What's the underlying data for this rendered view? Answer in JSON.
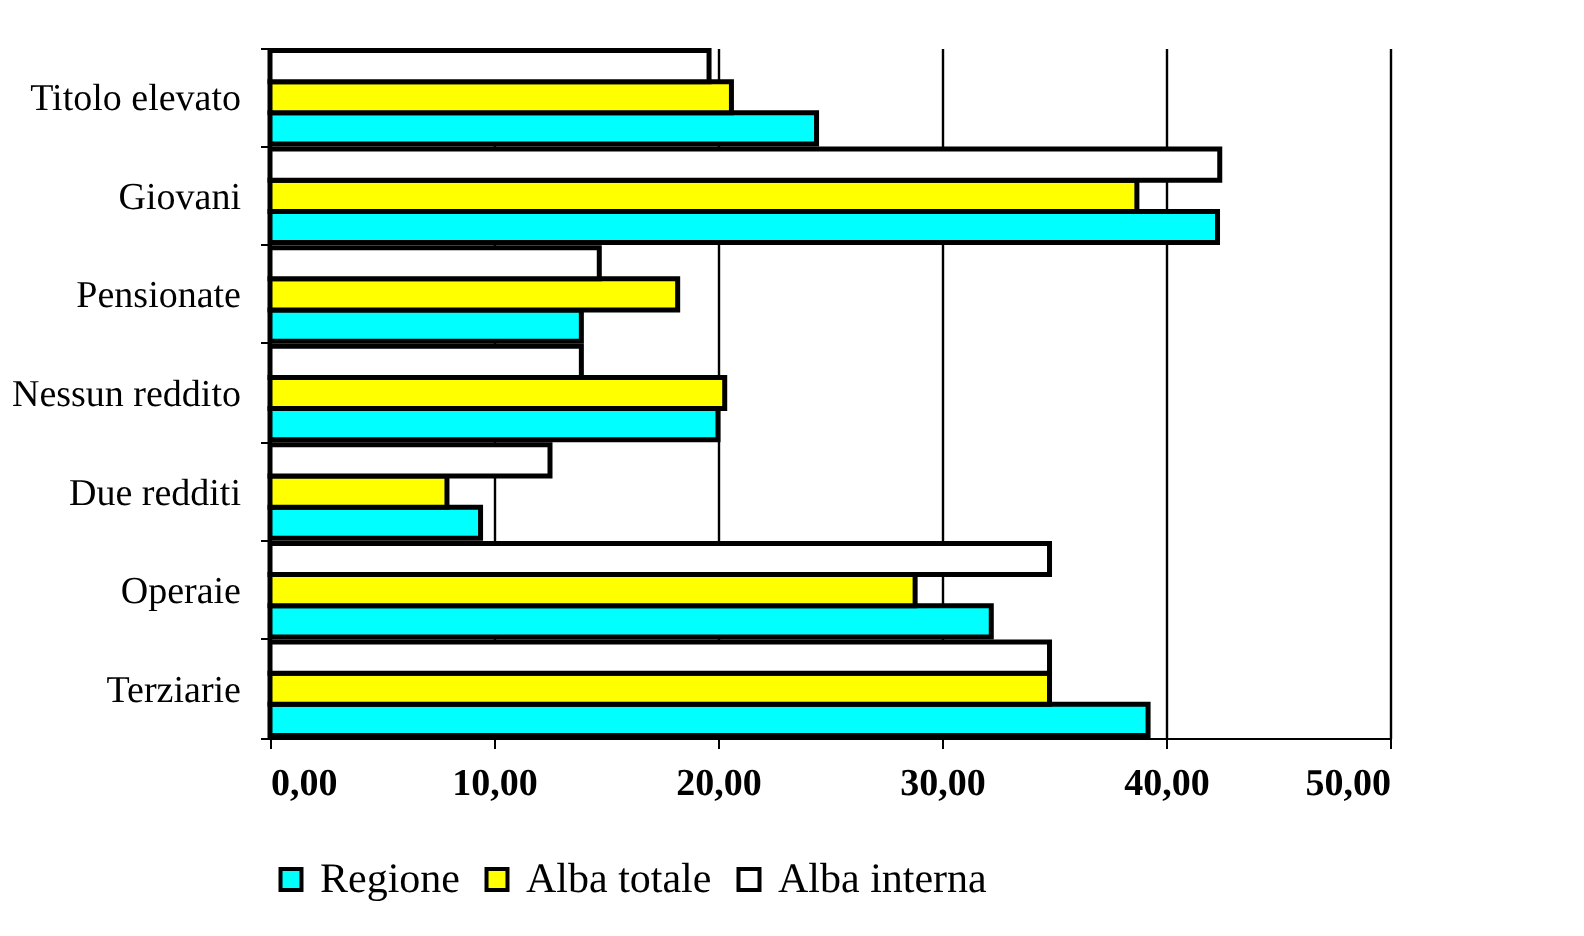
{
  "chart_data": {
    "type": "bar",
    "orientation": "horizontal",
    "categories": [
      "Titolo elevato",
      "Giovani",
      "Pensionate",
      "Nessun reddito",
      "Due redditi",
      "Operaie",
      "Terziarie"
    ],
    "series": [
      {
        "name": "Regione",
        "color": "#00ffff",
        "values": [
          24.4,
          42.3,
          13.9,
          20.0,
          9.4,
          32.2,
          39.2
        ]
      },
      {
        "name": "Alba totale",
        "color": "#ffff00",
        "values": [
          20.6,
          38.7,
          18.2,
          20.3,
          7.9,
          28.8,
          34.8
        ]
      },
      {
        "name": "Alba interna",
        "color": "#ffffff",
        "values": [
          19.6,
          42.4,
          14.7,
          13.9,
          12.5,
          34.8,
          34.8
        ]
      }
    ],
    "xlim": [
      0,
      50
    ],
    "xticks": [
      {
        "value": 0,
        "label": "0,00"
      },
      {
        "value": 10,
        "label": "10,00"
      },
      {
        "value": 20,
        "label": "20,00"
      },
      {
        "value": 30,
        "label": "30,00"
      },
      {
        "value": 40,
        "label": "40,00"
      },
      {
        "value": 50,
        "label": "50,00"
      }
    ],
    "grid": "x",
    "legend": "bottom"
  }
}
